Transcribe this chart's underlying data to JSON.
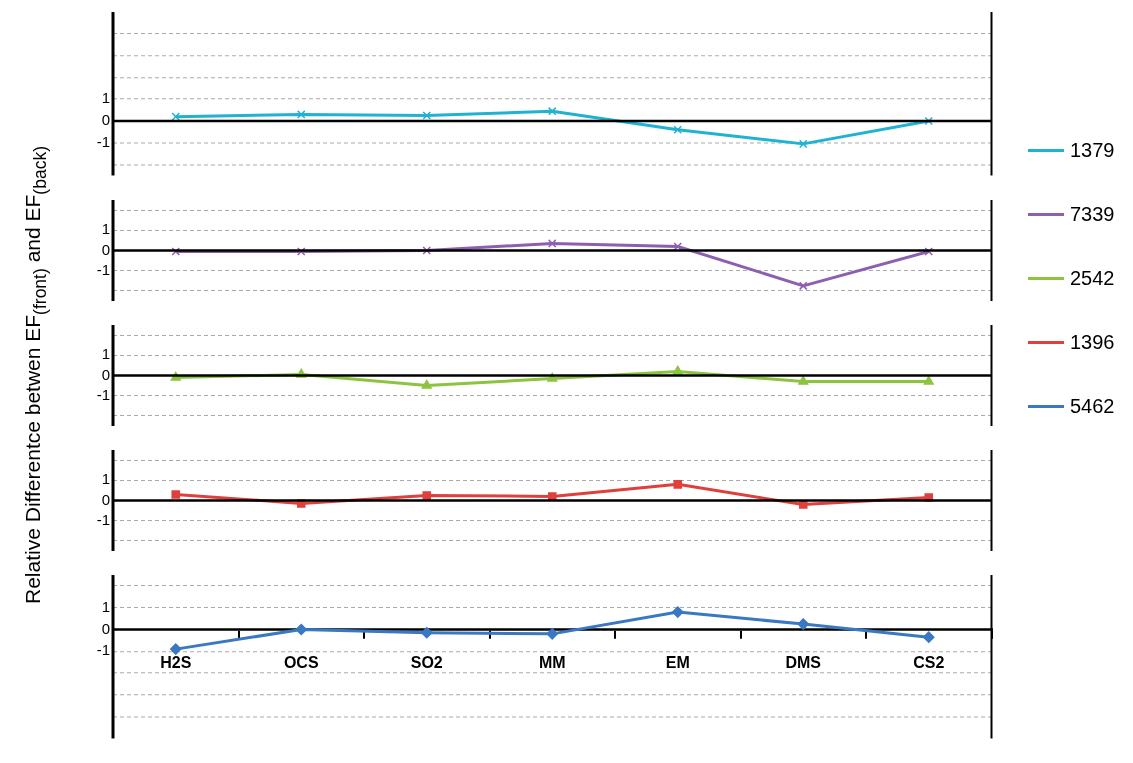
{
  "chart_data": [
    {
      "type": "line",
      "categories": [
        null,
        null,
        null,
        null,
        null,
        null,
        null
      ],
      "series": [
        {
          "name": "1379",
          "color": "#1fb3d1",
          "values": [
            0.2,
            0.3,
            0.25,
            0.45,
            -0.4,
            -1.05,
            0
          ]
        }
      ],
      "marker": "cross",
      "ylim": [
        -2.5,
        5
      ],
      "yticks": [
        {
          "value": 4,
          "label": null
        },
        {
          "value": 3,
          "label": null
        },
        {
          "value": 2,
          "label": null
        },
        1,
        0,
        -1,
        {
          "value": -2,
          "label": null
        }
      ],
      "grid": "y",
      "tick_labels": "y",
      "legend": "right",
      "ref_lines": [
        {
          "axis": "y",
          "value": 0,
          "color": "#000000"
        }
      ]
    },
    {
      "type": "line",
      "categories": [
        null,
        null,
        null,
        null,
        null,
        null,
        null
      ],
      "series": [
        {
          "name": "7339",
          "color": "#8e5fb0",
          "values": [
            -0.05,
            -0.05,
            0,
            0.35,
            0.2,
            -1.75,
            -0.05
          ]
        }
      ],
      "marker": "cross",
      "ylim": [
        -2.5,
        2.5
      ],
      "yticks": [
        {
          "value": 2,
          "label": null
        },
        1,
        0,
        -1,
        {
          "value": -2,
          "label": null
        }
      ],
      "grid": "y",
      "tick_labels": "y",
      "legend": "right",
      "ref_lines": [
        {
          "axis": "y",
          "value": 0,
          "color": "#000000"
        }
      ]
    },
    {
      "type": "line",
      "categories": [
        null,
        null,
        null,
        null,
        null,
        null,
        null
      ],
      "series": [
        {
          "name": "2542",
          "color": "#8dc43f",
          "values": [
            -0.1,
            0.05,
            -0.5,
            -0.15,
            0.2,
            -0.3,
            -0.3
          ]
        }
      ],
      "marker": "triangle",
      "ylabel": "Relative Differentce betwen EF$_{(front)}$ and EF$_{(back)}$",
      "ylim": [
        -2.5,
        2.5
      ],
      "yticks": [
        {
          "value": 2,
          "label": null
        },
        1,
        0,
        -1,
        {
          "value": -2,
          "label": null
        }
      ],
      "grid": "y",
      "tick_labels": "y",
      "legend": "right",
      "ref_lines": [
        {
          "axis": "y",
          "value": 0,
          "color": "#000000"
        }
      ]
    },
    {
      "type": "line",
      "categories": [
        null,
        null,
        null,
        null,
        null,
        null,
        null
      ],
      "series": [
        {
          "name": "1396",
          "color": "#e0403c",
          "values": [
            0.3,
            -0.15,
            0.25,
            0.2,
            0.8,
            -0.2,
            0.15
          ]
        }
      ],
      "marker": "square",
      "ylim": [
        -2.5,
        2.5
      ],
      "yticks": [
        {
          "value": 2,
          "label": null
        },
        1,
        0,
        -1,
        {
          "value": -2,
          "label": null
        }
      ],
      "grid": "y",
      "tick_labels": "y",
      "legend": "right",
      "ref_lines": [
        {
          "axis": "y",
          "value": 0,
          "color": "#000000"
        }
      ]
    },
    {
      "type": "line",
      "categories": [
        "H2S",
        "OCS",
        "SO2",
        "MM",
        "EM",
        "DMS",
        "CS2"
      ],
      "series": [
        {
          "name": "5462",
          "color": "#3a78c4",
          "values": [
            -0.9,
            0,
            -0.15,
            -0.2,
            0.8,
            0.25,
            -0.35
          ]
        }
      ],
      "marker": "diamond",
      "ylim": [
        -5,
        2.5
      ],
      "yticks": [
        {
          "value": 2,
          "label": null
        },
        1,
        0,
        -1,
        {
          "value": -2,
          "label": null
        },
        {
          "value": -3,
          "label": null
        },
        {
          "value": -4,
          "label": null
        }
      ],
      "grid": "y",
      "legend": "right"
    }
  ]
}
